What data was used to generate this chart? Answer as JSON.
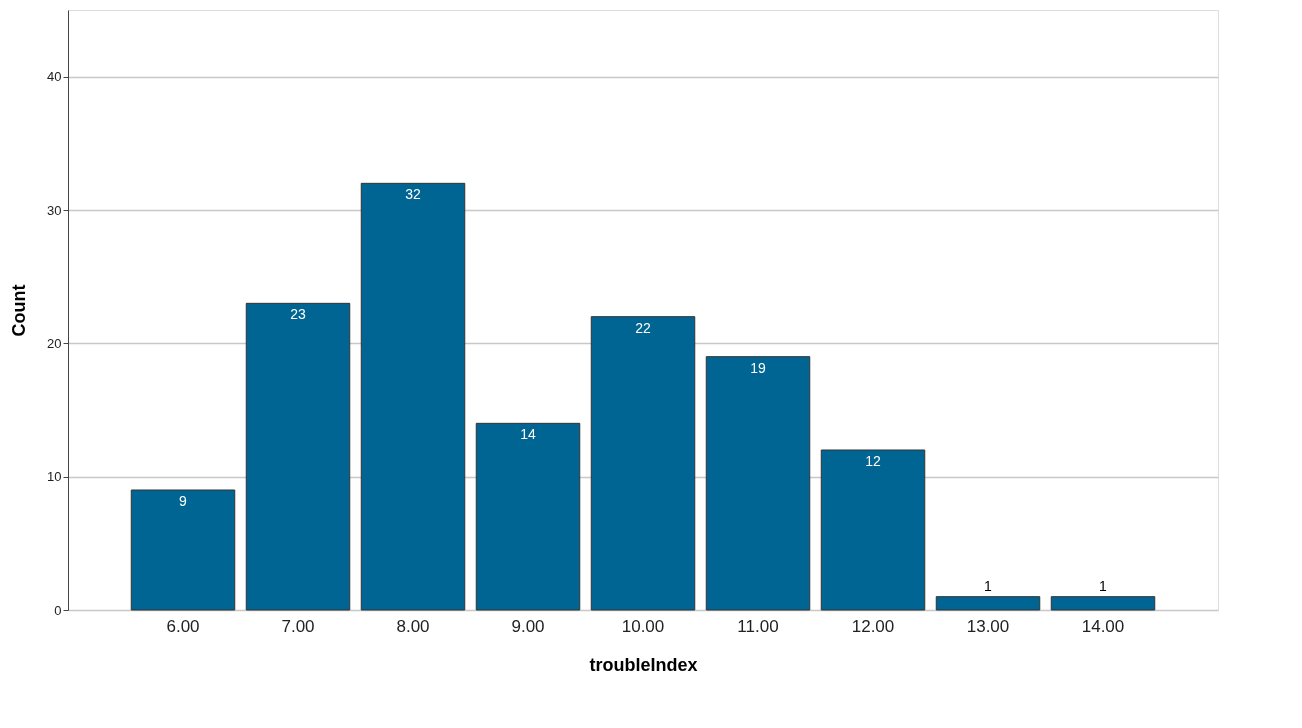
{
  "chart_data": {
    "type": "bar",
    "xlabel": "troubleIndex",
    "ylabel": "Count",
    "categories": [
      "6.00",
      "7.00",
      "8.00",
      "9.00",
      "10.00",
      "11.00",
      "12.00",
      "13.00",
      "14.00"
    ],
    "values": [
      9,
      23,
      32,
      14,
      22,
      19,
      12,
      1,
      1
    ],
    "color": "#006592",
    "ylim": [
      0,
      45
    ],
    "yticks": [
      0,
      10,
      20,
      30,
      40
    ],
    "grid": "y",
    "data_labels": true
  }
}
